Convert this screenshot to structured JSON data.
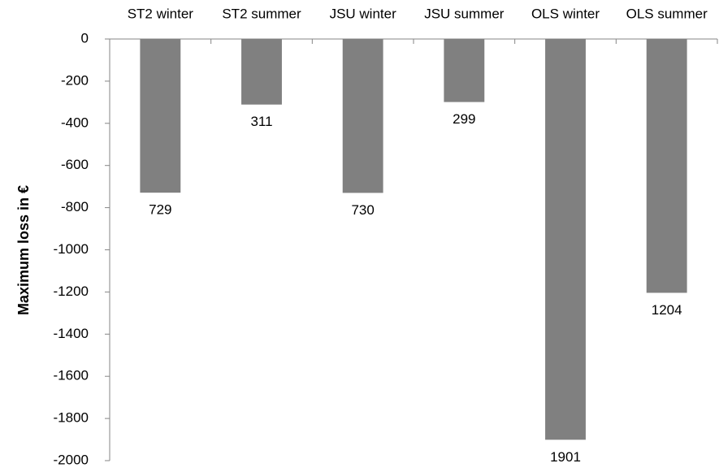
{
  "chart_data": {
    "type": "bar",
    "y_label": "Maximum loss in €",
    "categories": [
      "ST2 winter",
      "ST2 summer",
      "JSU winter",
      "JSU summer",
      "OLS winter",
      "OLS summer"
    ],
    "values": [
      -729,
      -311,
      -730,
      -299,
      -1901,
      -1204
    ],
    "value_labels": [
      "729",
      "311",
      "730",
      "299",
      "1901",
      "1204"
    ],
    "color": "#808080",
    "ylim": [
      -2000,
      0
    ],
    "yticks": [
      0,
      -200,
      -400,
      -600,
      -800,
      -1000,
      -1200,
      -1400,
      -1600,
      -1800,
      -2000
    ],
    "grid": false
  }
}
